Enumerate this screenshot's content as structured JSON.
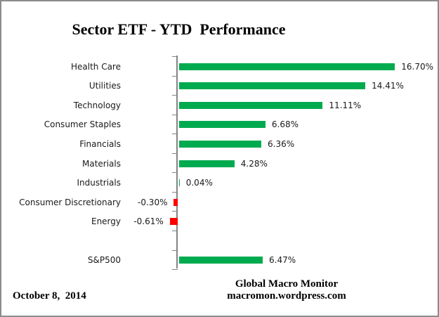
{
  "title": "Sector ETF - YTD  Performance",
  "footer": {
    "date": "October 8,  2014",
    "brand_line1": "Global Macro Monitor",
    "brand_line2": "macromon.wordpress.com"
  },
  "colors": {
    "positive_bar": "#00AB50",
    "negative_bar": "#FF0000",
    "axis": "#848484",
    "border": "#8C8C8C",
    "text": "#000000",
    "background": "#FFFFFF"
  },
  "chart_data": {
    "type": "bar",
    "orientation": "horizontal",
    "title": "Sector ETF - YTD  Performance",
    "unit": "%",
    "categories": [
      "Health Care",
      "Utilities",
      "Technology",
      "Consumer Staples",
      "Financials",
      "Materials",
      "Industrials",
      "Consumer Discretionary",
      "Energy",
      "",
      "S&P500"
    ],
    "values": [
      16.7,
      14.41,
      11.11,
      6.68,
      6.36,
      4.28,
      0.04,
      -0.3,
      -0.61,
      null,
      6.47
    ],
    "value_labels": [
      "16.70%",
      "14.41%",
      "11.11%",
      "6.68%",
      "6.36%",
      "4.28%",
      "0.04%",
      "-0.30%",
      "-0.61%",
      "",
      "6.47%"
    ],
    "xlabel": "",
    "ylabel": "",
    "legend": false,
    "gridlines": false,
    "value_axis_tick_labels_visible": false,
    "data_labels_visible": true
  }
}
